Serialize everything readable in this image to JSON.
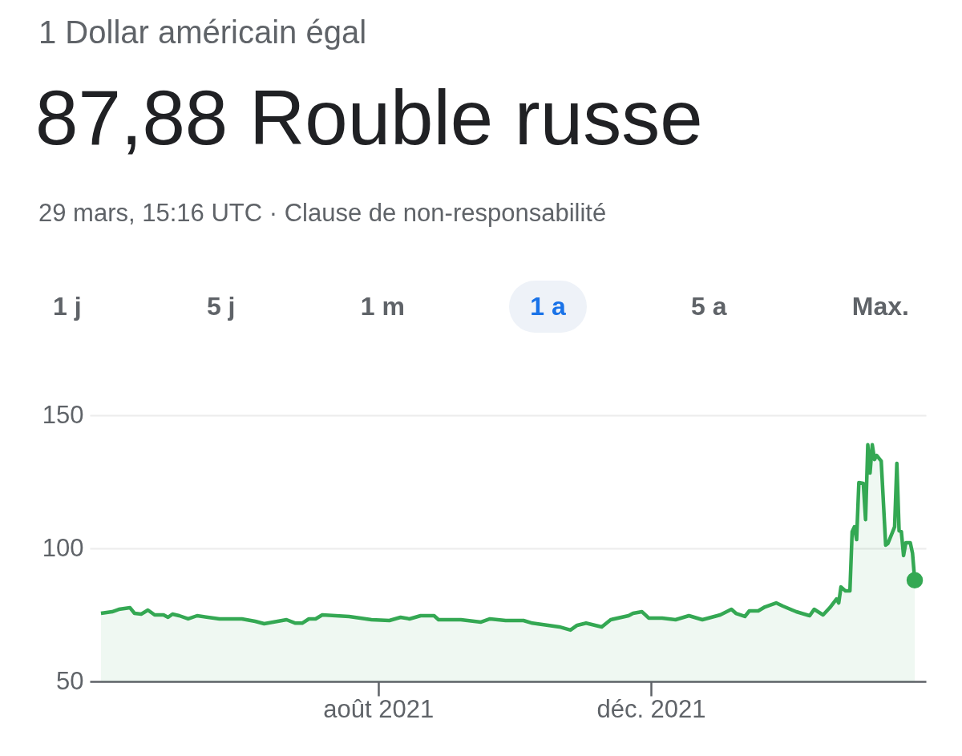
{
  "chart_data": {
    "type": "area",
    "title": "1 Dollar américain égal",
    "subtitle": "87,88 Rouble russe",
    "annotations": [
      "29 mars, 15:16 UTC · Clause de non-responsabilité",
      "1 j",
      "5 j",
      "1 m",
      "1 a",
      "5 a",
      "Max."
    ],
    "xlim": [
      "2021-03-25",
      "2022-04-03"
    ],
    "xticks": [
      {
        "value": "2021-08-01",
        "label": "août 2021"
      },
      {
        "value": "2021-12-01",
        "label": "déc. 2021"
      }
    ],
    "ylim": [
      50,
      150
    ],
    "yticks": [
      50,
      100,
      150
    ],
    "grid": "y",
    "series": [
      {
        "color": "#34a853",
        "x": [
          "2021-03-30",
          "2021-04-04",
          "2021-04-07",
          "2021-04-12",
          "2021-04-14",
          "2021-04-17",
          "2021-04-20",
          "2021-04-23",
          "2021-04-27",
          "2021-04-29",
          "2021-05-01",
          "2021-05-04",
          "2021-05-08",
          "2021-05-12",
          "2021-05-22",
          "2021-06-01",
          "2021-06-07",
          "2021-06-11",
          "2021-06-15",
          "2021-06-21",
          "2021-06-25",
          "2021-06-28",
          "2021-07-01",
          "2021-07-04",
          "2021-07-07",
          "2021-07-19",
          "2021-07-29",
          "2021-08-06",
          "2021-08-11",
          "2021-08-15",
          "2021-08-20",
          "2021-08-26",
          "2021-08-28",
          "2021-09-07",
          "2021-09-16",
          "2021-09-20",
          "2021-09-27",
          "2021-10-05",
          "2021-10-09",
          "2021-10-16",
          "2021-10-21",
          "2021-10-26",
          "2021-10-29",
          "2021-11-02",
          "2021-11-09",
          "2021-11-13",
          "2021-11-21",
          "2021-11-23",
          "2021-11-27",
          "2021-11-30",
          "2021-12-06",
          "2021-12-12",
          "2021-12-18",
          "2021-12-24",
          "2022-01-01",
          "2022-01-06",
          "2022-01-08",
          "2022-01-12",
          "2022-01-14",
          "2022-01-18",
          "2022-01-21",
          "2022-01-26",
          "2022-01-29",
          "2022-02-04",
          "2022-02-10",
          "2022-02-12",
          "2022-02-16",
          "2022-02-19",
          "2022-02-22",
          "2022-02-23",
          "2022-02-24",
          "2022-02-26",
          "2022-02-28",
          "2022-03-01",
          "2022-03-02",
          "2022-03-03",
          "2022-03-04",
          "2022-03-06",
          "2022-03-07",
          "2022-03-08",
          "2022-03-09",
          "2022-03-10",
          "2022-03-11",
          "2022-03-12",
          "2022-03-14",
          "2022-03-16",
          "2022-03-17",
          "2022-03-20",
          "2022-03-21",
          "2022-03-22",
          "2022-03-23",
          "2022-03-24",
          "2022-03-25",
          "2022-03-27",
          "2022-03-28",
          "2022-03-29"
        ],
        "values": [
          75.6,
          76.2,
          77.1,
          77.7,
          75.6,
          75.3,
          76.8,
          75,
          75,
          74.1,
          75.3,
          74.7,
          73.5,
          74.7,
          73.5,
          73.5,
          72.6,
          71.7,
          72.3,
          73.2,
          71.9,
          71.9,
          73.5,
          73.5,
          75,
          74.4,
          73.2,
          72.9,
          74.1,
          73.5,
          74.7,
          74.7,
          73.2,
          73.2,
          72.3,
          73.5,
          72.9,
          72.9,
          71.9,
          71.1,
          70.5,
          69.3,
          71.1,
          71.9,
          70.5,
          73.2,
          74.7,
          75.6,
          76.2,
          73.8,
          73.8,
          73.2,
          74.7,
          73.2,
          75,
          77.1,
          75.6,
          74.4,
          76.5,
          76.5,
          78,
          79.5,
          78.3,
          76.2,
          74.7,
          77.1,
          75,
          77.7,
          81,
          79.5,
          85.5,
          84,
          84,
          106.3,
          108.1,
          103.3,
          124.7,
          124.4,
          110.8,
          138.9,
          128.3,
          138.9,
          133.4,
          134.9,
          132.8,
          101.2,
          101.8,
          108.1,
          131.9,
          106.6,
          106.3,
          97.3,
          102.1,
          102.1,
          98.2,
          88
        ]
      },
      {
        "type": "scatter",
        "color": "#34a853",
        "x": [
          "2022-03-29"
        ],
        "values": [
          88
        ]
      }
    ]
  }
}
